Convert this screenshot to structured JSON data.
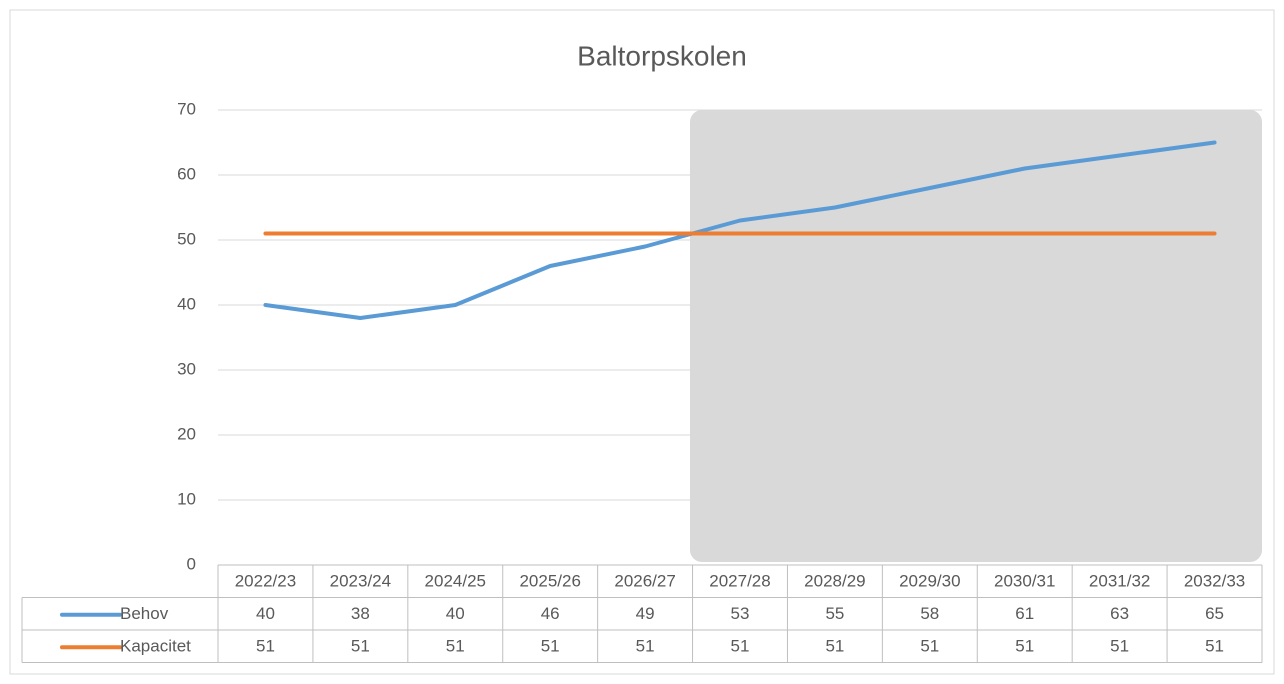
{
  "chart_data": {
    "type": "line",
    "title": "Baltorpskolen",
    "categories": [
      "2022/23",
      "2023/24",
      "2024/25",
      "2025/26",
      "2026/27",
      "2027/28",
      "2028/29",
      "2029/30",
      "2030/31",
      "2031/32",
      "2032/33"
    ],
    "series": [
      {
        "name": "Behov",
        "color": "#5b9bd5",
        "values": [
          40,
          38,
          40,
          46,
          49,
          53,
          55,
          58,
          61,
          63,
          65
        ]
      },
      {
        "name": "Kapacitet",
        "color": "#ed7d31",
        "values": [
          51,
          51,
          51,
          51,
          51,
          51,
          51,
          51,
          51,
          51,
          51
        ]
      }
    ],
    "ylim": [
      0,
      70
    ],
    "yticks": [
      0,
      10,
      20,
      30,
      40,
      50,
      60,
      70
    ],
    "grid": true
  }
}
